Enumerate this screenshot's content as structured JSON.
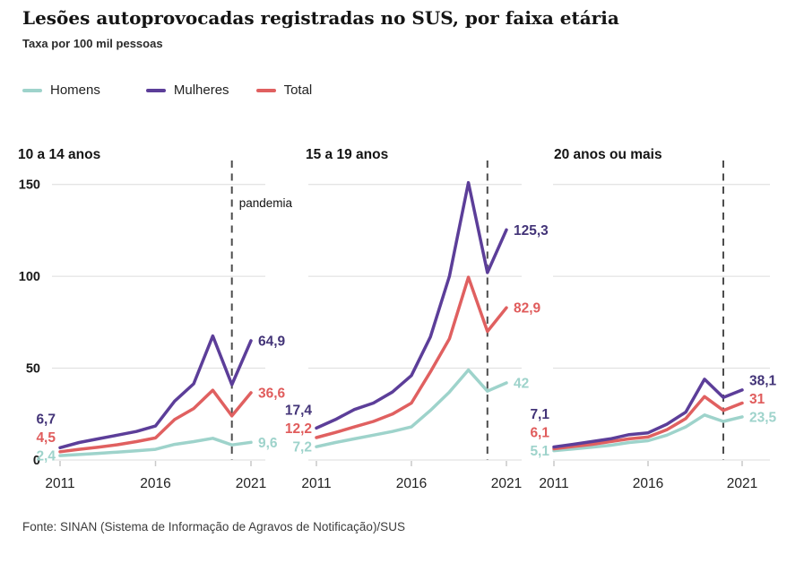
{
  "header": {
    "title": "Lesões autoprovocadas registradas no SUS, por faixa etária",
    "subtitle": "Taxa por 100 mil pessoas"
  },
  "legend": {
    "position": "top",
    "items": [
      {
        "label": "Homens",
        "color": "#9ed3cb"
      },
      {
        "label": "Mulheres",
        "color": "#5c3e99"
      },
      {
        "label": "Total",
        "color": "#e06060"
      }
    ]
  },
  "footer": {
    "source": "Fonte: SINAN (Sistema de Informação de Agravos de Notificação)/SUS"
  },
  "chart_data": [
    {
      "type": "line",
      "title": "10 a 14 anos",
      "x": [
        2011,
        2012,
        2013,
        2014,
        2015,
        2016,
        2017,
        2018,
        2019,
        2020,
        2021
      ],
      "x_ticks": [
        2011,
        2016,
        2021
      ],
      "y_grid": [
        0,
        50,
        100,
        150
      ],
      "ylim": [
        0,
        160
      ],
      "grid": true,
      "show_y_labels": true,
      "pandemic_x": 2020,
      "pandemic_label": "pandemia",
      "series": [
        {
          "name": "Homens",
          "color": "#9ed3cb",
          "label_color": "#9ed3cb",
          "values": [
            2.4,
            3,
            3.6,
            4.3,
            5,
            5.8,
            8.5,
            10,
            11.8,
            8.2,
            9.6
          ],
          "start_label": "2,4",
          "end_label": "9,6"
        },
        {
          "name": "Mulheres",
          "color": "#5c3e99",
          "label_color": "#433478",
          "values": [
            6.7,
            9.5,
            11.5,
            13.5,
            15.5,
            18.5,
            32,
            41.5,
            67.5,
            41,
            64.9
          ],
          "start_label": "6,7",
          "end_label": "64,9"
        },
        {
          "name": "Total",
          "color": "#e06060",
          "label_color": "#e05c5c",
          "values": [
            4.5,
            5.8,
            7,
            8.3,
            10,
            12,
            22,
            28,
            38,
            24,
            36.6
          ],
          "start_label": "4,5",
          "end_label": "36,6"
        }
      ]
    },
    {
      "type": "line",
      "title": "15 a 19 anos",
      "x": [
        2011,
        2012,
        2013,
        2014,
        2015,
        2016,
        2017,
        2018,
        2019,
        2020,
        2021
      ],
      "x_ticks": [
        2011,
        2016,
        2021
      ],
      "y_grid": [
        0,
        50,
        100,
        150
      ],
      "ylim": [
        0,
        160
      ],
      "grid": true,
      "show_y_labels": false,
      "pandemic_x": 2020,
      "series": [
        {
          "name": "Homens",
          "color": "#9ed3cb",
          "label_color": "#9ed3cb",
          "values": [
            7.2,
            9.5,
            11.5,
            13.5,
            15.5,
            18,
            27,
            37,
            49,
            37.5,
            42
          ],
          "start_label": "7,2",
          "end_label": "42"
        },
        {
          "name": "Mulheres",
          "color": "#5c3e99",
          "label_color": "#433478",
          "values": [
            17.4,
            22,
            27.5,
            31,
            37,
            46,
            67,
            100,
            151,
            102,
            125.3
          ],
          "start_label": "17,4",
          "end_label": "125,3"
        },
        {
          "name": "Total",
          "color": "#e06060",
          "label_color": "#e05c5c",
          "values": [
            12.2,
            15,
            18,
            21,
            25,
            31,
            48,
            66,
            99.5,
            70,
            82.9
          ],
          "start_label": "12,2",
          "end_label": "82,9"
        }
      ]
    },
    {
      "type": "line",
      "title": "20 anos ou mais",
      "x": [
        2011,
        2012,
        2013,
        2014,
        2015,
        2016,
        2017,
        2018,
        2019,
        2020,
        2021
      ],
      "x_ticks": [
        2011,
        2016,
        2021
      ],
      "y_grid": [
        0,
        50,
        100,
        150
      ],
      "ylim": [
        0,
        160
      ],
      "grid": true,
      "show_y_labels": false,
      "pandemic_x": 2020,
      "series": [
        {
          "name": "Homens",
          "color": "#9ed3cb",
          "label_color": "#9ed3cb",
          "values": [
            5.1,
            6,
            7,
            8,
            9.5,
            10.5,
            13.5,
            18,
            24.5,
            21,
            23.5
          ],
          "start_label": "5,1",
          "end_label": "23,5"
        },
        {
          "name": "Mulheres",
          "color": "#5c3e99",
          "label_color": "#433478",
          "values": [
            7.1,
            8.5,
            10,
            11.5,
            13.8,
            14.8,
            19.5,
            26,
            44,
            34,
            38.1
          ],
          "start_label": "7,1",
          "end_label": "38,1"
        },
        {
          "name": "Total",
          "color": "#e06060",
          "label_color": "#e05c5c",
          "values": [
            6.1,
            7.3,
            8.5,
            10,
            11.5,
            12.5,
            16.5,
            22.5,
            34.5,
            27,
            31
          ],
          "start_label": "6,1",
          "end_label": "31"
        }
      ]
    }
  ]
}
